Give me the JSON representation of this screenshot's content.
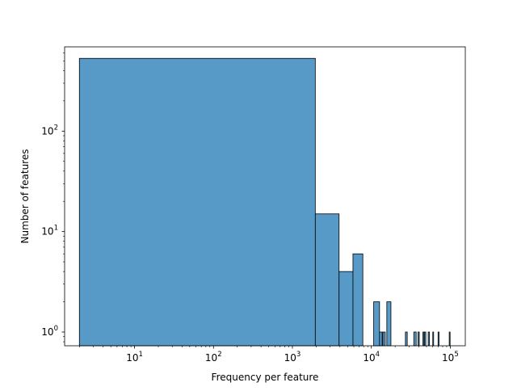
{
  "chart_data": {
    "type": "bar",
    "subtype": "histogram",
    "xlabel": "Frequency per feature",
    "ylabel": "Number of features",
    "xscale": "log",
    "yscale": "log",
    "xlim": [
      1.3,
      155000
    ],
    "ylim": [
      0.73,
      690
    ],
    "grid": false,
    "bar_color": "#5799C7",
    "edge_color": "#000000",
    "x_ticks": [
      {
        "value": 10,
        "base": "10",
        "exp": "1"
      },
      {
        "value": 100,
        "base": "10",
        "exp": "2"
      },
      {
        "value": 1000,
        "base": "10",
        "exp": "3"
      },
      {
        "value": 10000,
        "base": "10",
        "exp": "4"
      },
      {
        "value": 100000,
        "base": "10",
        "exp": "5"
      }
    ],
    "y_ticks": [
      {
        "value": 1,
        "base": "10",
        "exp": "0"
      },
      {
        "value": 10,
        "base": "10",
        "exp": "1"
      },
      {
        "value": 100,
        "base": "10",
        "exp": "2"
      }
    ],
    "bins": [
      {
        "x0": 2,
        "x1": 1950,
        "count": 530
      },
      {
        "x0": 1950,
        "x1": 3900,
        "count": 15
      },
      {
        "x0": 3900,
        "x1": 5850,
        "count": 4
      },
      {
        "x0": 5850,
        "x1": 7800,
        "count": 6
      },
      {
        "x0": 10700,
        "x1": 12700,
        "count": 2
      },
      {
        "x0": 12700,
        "x1": 13700,
        "count": 1
      },
      {
        "x0": 14000,
        "x1": 15000,
        "count": 1
      },
      {
        "x0": 15700,
        "x1": 17700,
        "count": 2
      },
      {
        "x0": 27000,
        "x1": 28500,
        "count": 1
      },
      {
        "x0": 34500,
        "x1": 37000,
        "count": 1
      },
      {
        "x0": 39000,
        "x1": 40500,
        "count": 1
      },
      {
        "x0": 45000,
        "x1": 46500,
        "count": 1
      },
      {
        "x0": 47000,
        "x1": 49000,
        "count": 1
      },
      {
        "x0": 52500,
        "x1": 54500,
        "count": 1
      },
      {
        "x0": 60000,
        "x1": 61500,
        "count": 1
      },
      {
        "x0": 70000,
        "x1": 72000,
        "count": 1
      },
      {
        "x0": 97000,
        "x1": 99500,
        "count": 1
      }
    ]
  }
}
